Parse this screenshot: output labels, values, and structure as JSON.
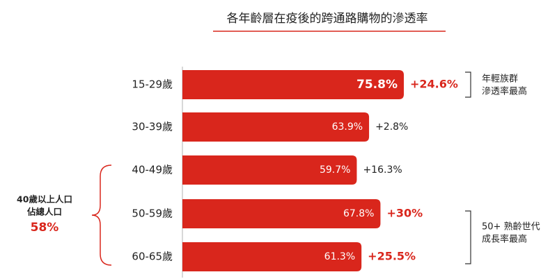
{
  "chart_data": {
    "type": "bar",
    "orientation": "horizontal",
    "title": "各年齡層在疫後的跨通路購物的滲透率",
    "categories": [
      "15-29歲",
      "30-39歲",
      "40-49歲",
      "50-59歲",
      "60-65歲"
    ],
    "values": [
      75.8,
      63.9,
      59.7,
      67.8,
      61.3
    ],
    "value_labels": [
      "75.8%",
      "63.9%",
      "59.7%",
      "67.8%",
      "61.3%"
    ],
    "color": "#d9261c",
    "growth": {
      "values": [
        24.6,
        2.8,
        16.3,
        30,
        25.5
      ],
      "value_labels": [
        "+24.6%",
        "+2.8%",
        "+16.3%",
        "+30%",
        "+25.5%"
      ],
      "highlight": [
        true,
        false,
        false,
        true,
        true
      ],
      "highlight_color": "#d9261c"
    },
    "annotations": [
      {
        "lines": [
          "年輕族群",
          "滲透率最高"
        ]
      },
      {
        "lines": [
          "50+ 熟齡世代",
          "成長率最高"
        ]
      }
    ],
    "group_note": {
      "lines": [
        "40歲以上人口",
        "佔總人口"
      ],
      "value": 58,
      "value_label": "58%"
    }
  }
}
